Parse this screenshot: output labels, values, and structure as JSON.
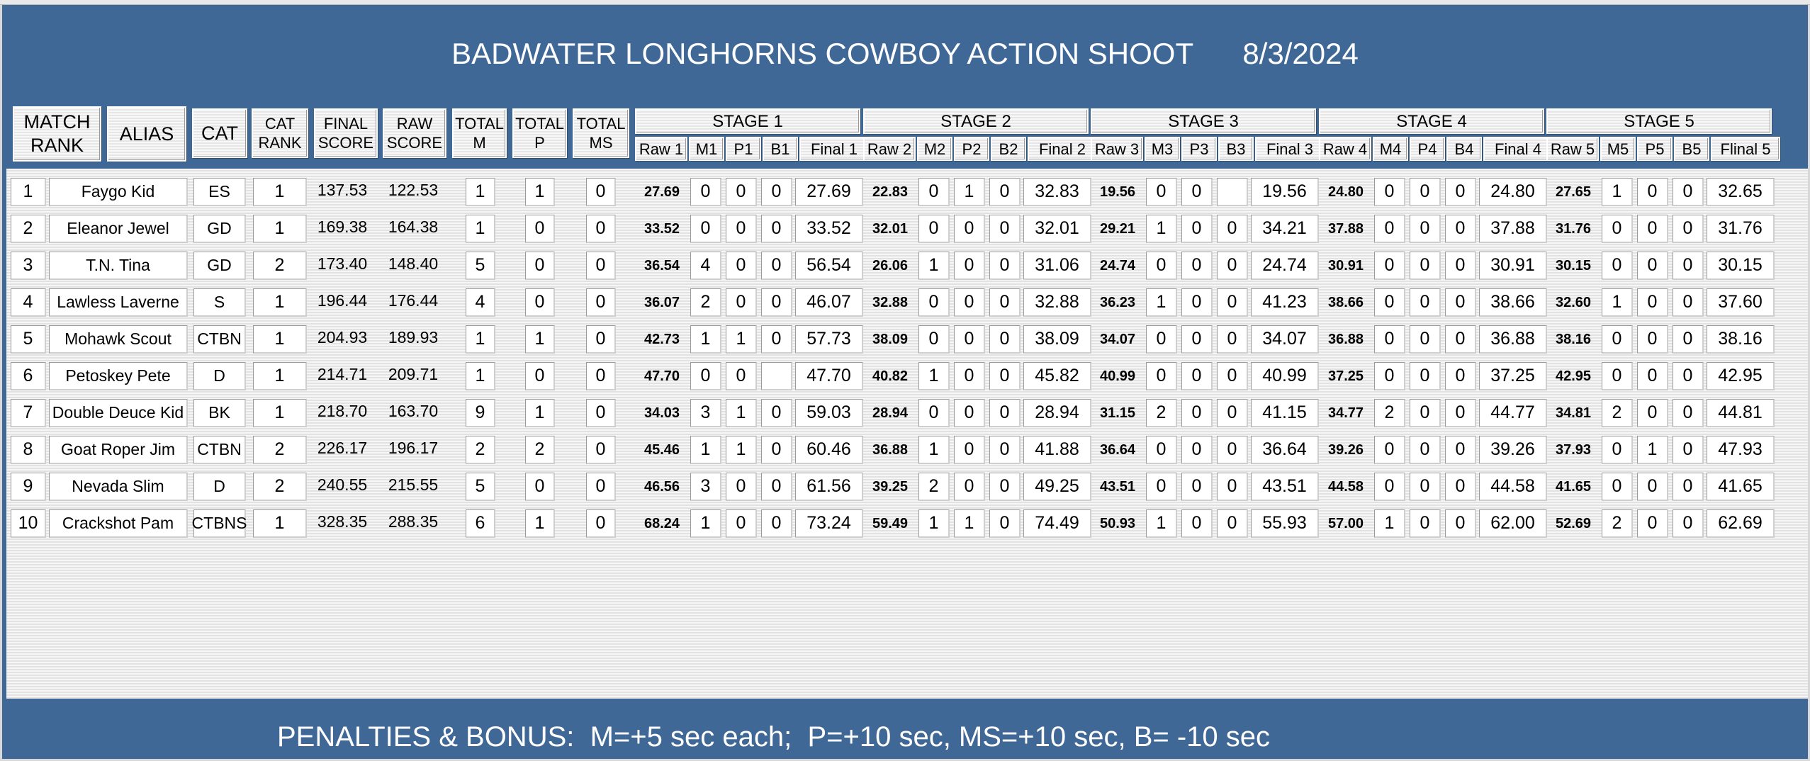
{
  "title": "BADWATER LONGHORNS COWBOY ACTION SHOOT      8/3/2024",
  "footer": "PENALTIES & BONUS:  M=+5 sec each;  P=+10 sec, MS=+10 sec, B= -10 sec",
  "headers": {
    "match_rank": "MATCH\nRANK",
    "alias": "ALIAS",
    "cat": "CAT",
    "cat_rank": "CAT\nRANK",
    "final_score": "FINAL\nSCORE",
    "raw_score": "RAW\nSCORE",
    "total_m": "TOTAL\nM",
    "total_p": "TOTAL\nP",
    "total_ms": "TOTAL\nMS"
  },
  "stages": [
    {
      "label": "STAGE 1",
      "cols": [
        "Raw 1",
        "M1",
        "P1",
        "B1",
        "Final 1"
      ]
    },
    {
      "label": "STAGE 2",
      "cols": [
        "Raw 2",
        "M2",
        "P2",
        "B2",
        "Final 2"
      ]
    },
    {
      "label": "STAGE 3",
      "cols": [
        "Raw 3",
        "M3",
        "P3",
        "B3",
        "Final 3"
      ]
    },
    {
      "label": "STAGE 4",
      "cols": [
        "Raw 4",
        "M4",
        "P4",
        "B4",
        "Final 4"
      ]
    },
    {
      "label": "STAGE 5",
      "cols": [
        "Raw 5",
        "M5",
        "P5",
        "B5",
        "Flinal 5"
      ]
    }
  ],
  "rows": [
    {
      "rank": "1",
      "alias": "Faygo Kid",
      "cat": "ES",
      "cat_rank": "1",
      "final": "137.53",
      "raw": "122.53",
      "tm": "1",
      "tp": "1",
      "tms": "0",
      "stages": [
        [
          "27.69",
          "0",
          "0",
          "0",
          "27.69"
        ],
        [
          "22.83",
          "0",
          "1",
          "0",
          "32.83"
        ],
        [
          "19.56",
          "0",
          "0",
          "",
          "19.56"
        ],
        [
          "24.80",
          "0",
          "0",
          "0",
          "24.80"
        ],
        [
          "27.65",
          "1",
          "0",
          "0",
          "32.65"
        ]
      ]
    },
    {
      "rank": "2",
      "alias": "Eleanor Jewel",
      "cat": "GD",
      "cat_rank": "1",
      "final": "169.38",
      "raw": "164.38",
      "tm": "1",
      "tp": "0",
      "tms": "0",
      "stages": [
        [
          "33.52",
          "0",
          "0",
          "0",
          "33.52"
        ],
        [
          "32.01",
          "0",
          "0",
          "0",
          "32.01"
        ],
        [
          "29.21",
          "1",
          "0",
          "0",
          "34.21"
        ],
        [
          "37.88",
          "0",
          "0",
          "0",
          "37.88"
        ],
        [
          "31.76",
          "0",
          "0",
          "0",
          "31.76"
        ]
      ]
    },
    {
      "rank": "3",
      "alias": "T.N. Tina",
      "cat": "GD",
      "cat_rank": "2",
      "final": "173.40",
      "raw": "148.40",
      "tm": "5",
      "tp": "0",
      "tms": "0",
      "stages": [
        [
          "36.54",
          "4",
          "0",
          "0",
          "56.54"
        ],
        [
          "26.06",
          "1",
          "0",
          "0",
          "31.06"
        ],
        [
          "24.74",
          "0",
          "0",
          "0",
          "24.74"
        ],
        [
          "30.91",
          "0",
          "0",
          "0",
          "30.91"
        ],
        [
          "30.15",
          "0",
          "0",
          "0",
          "30.15"
        ]
      ]
    },
    {
      "rank": "4",
      "alias": "Lawless Laverne",
      "cat": "S",
      "cat_rank": "1",
      "final": "196.44",
      "raw": "176.44",
      "tm": "4",
      "tp": "0",
      "tms": "0",
      "stages": [
        [
          "36.07",
          "2",
          "0",
          "0",
          "46.07"
        ],
        [
          "32.88",
          "0",
          "0",
          "0",
          "32.88"
        ],
        [
          "36.23",
          "1",
          "0",
          "0",
          "41.23"
        ],
        [
          "38.66",
          "0",
          "0",
          "0",
          "38.66"
        ],
        [
          "32.60",
          "1",
          "0",
          "0",
          "37.60"
        ]
      ]
    },
    {
      "rank": "5",
      "alias": "Mohawk Scout",
      "cat": "CTBN",
      "cat_rank": "1",
      "final": "204.93",
      "raw": "189.93",
      "tm": "1",
      "tp": "1",
      "tms": "0",
      "stages": [
        [
          "42.73",
          "1",
          "1",
          "0",
          "57.73"
        ],
        [
          "38.09",
          "0",
          "0",
          "0",
          "38.09"
        ],
        [
          "34.07",
          "0",
          "0",
          "0",
          "34.07"
        ],
        [
          "36.88",
          "0",
          "0",
          "0",
          "36.88"
        ],
        [
          "38.16",
          "0",
          "0",
          "0",
          "38.16"
        ]
      ]
    },
    {
      "rank": "6",
      "alias": "Petoskey Pete",
      "cat": "D",
      "cat_rank": "1",
      "final": "214.71",
      "raw": "209.71",
      "tm": "1",
      "tp": "0",
      "tms": "0",
      "stages": [
        [
          "47.70",
          "0",
          "0",
          "",
          "47.70"
        ],
        [
          "40.82",
          "1",
          "0",
          "0",
          "45.82"
        ],
        [
          "40.99",
          "0",
          "0",
          "0",
          "40.99"
        ],
        [
          "37.25",
          "0",
          "0",
          "0",
          "37.25"
        ],
        [
          "42.95",
          "0",
          "0",
          "0",
          "42.95"
        ]
      ]
    },
    {
      "rank": "7",
      "alias": "Double Deuce Kid",
      "cat": "BK",
      "cat_rank": "1",
      "final": "218.70",
      "raw": "163.70",
      "tm": "9",
      "tp": "1",
      "tms": "0",
      "stages": [
        [
          "34.03",
          "3",
          "1",
          "0",
          "59.03"
        ],
        [
          "28.94",
          "0",
          "0",
          "0",
          "28.94"
        ],
        [
          "31.15",
          "2",
          "0",
          "0",
          "41.15"
        ],
        [
          "34.77",
          "2",
          "0",
          "0",
          "44.77"
        ],
        [
          "34.81",
          "2",
          "0",
          "0",
          "44.81"
        ]
      ]
    },
    {
      "rank": "8",
      "alias": "Goat Roper Jim",
      "cat": "CTBN",
      "cat_rank": "2",
      "final": "226.17",
      "raw": "196.17",
      "tm": "2",
      "tp": "2",
      "tms": "0",
      "stages": [
        [
          "45.46",
          "1",
          "1",
          "0",
          "60.46"
        ],
        [
          "36.88",
          "1",
          "0",
          "0",
          "41.88"
        ],
        [
          "36.64",
          "0",
          "0",
          "0",
          "36.64"
        ],
        [
          "39.26",
          "0",
          "0",
          "0",
          "39.26"
        ],
        [
          "37.93",
          "0",
          "1",
          "0",
          "47.93"
        ]
      ]
    },
    {
      "rank": "9",
      "alias": "Nevada Slim",
      "cat": "D",
      "cat_rank": "2",
      "final": "240.55",
      "raw": "215.55",
      "tm": "5",
      "tp": "0",
      "tms": "0",
      "stages": [
        [
          "46.56",
          "3",
          "0",
          "0",
          "61.56"
        ],
        [
          "39.25",
          "2",
          "0",
          "0",
          "49.25"
        ],
        [
          "43.51",
          "0",
          "0",
          "0",
          "43.51"
        ],
        [
          "44.58",
          "0",
          "0",
          "0",
          "44.58"
        ],
        [
          "41.65",
          "0",
          "0",
          "0",
          "41.65"
        ]
      ]
    },
    {
      "rank": "10",
      "alias": "Crackshot Pam",
      "cat": "CTBNS",
      "cat_rank": "1",
      "final": "328.35",
      "raw": "288.35",
      "tm": "6",
      "tp": "1",
      "tms": "0",
      "stages": [
        [
          "68.24",
          "1",
          "0",
          "0",
          "73.24"
        ],
        [
          "59.49",
          "1",
          "1",
          "0",
          "74.49"
        ],
        [
          "50.93",
          "1",
          "0",
          "0",
          "55.93"
        ],
        [
          "57.00",
          "1",
          "0",
          "0",
          "62.00"
        ],
        [
          "52.69",
          "2",
          "0",
          "0",
          "62.69"
        ]
      ]
    }
  ]
}
